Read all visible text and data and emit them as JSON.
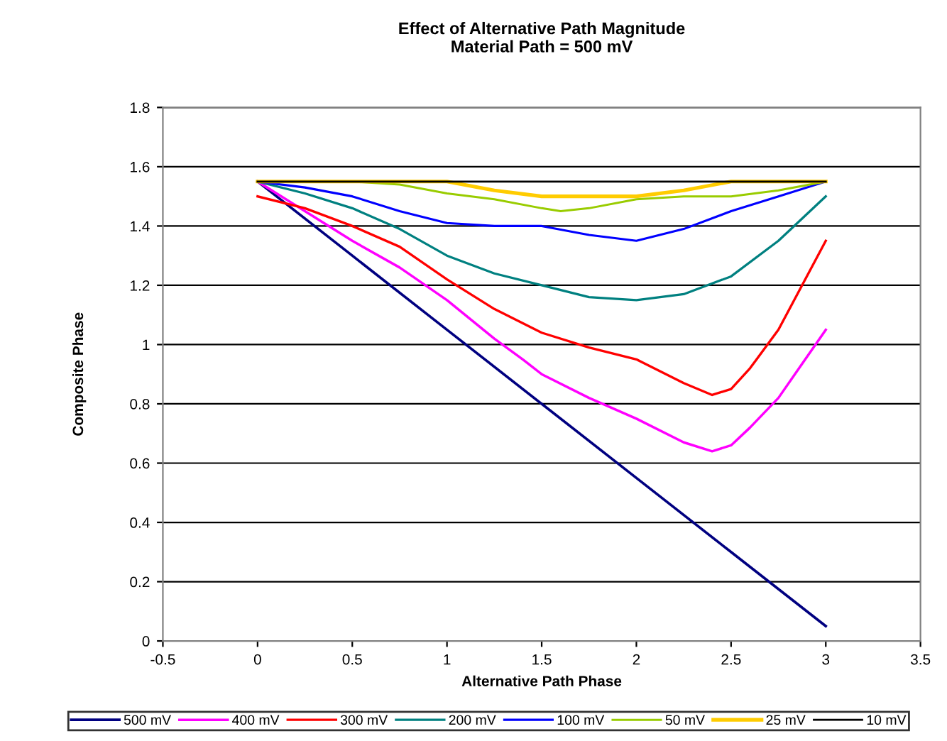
{
  "chart_data": {
    "type": "line",
    "title": "Effect of Alternative Path Magnitude\nMaterial Path = 500 mV",
    "xlabel": "Alternative Path Phase",
    "ylabel": "Composite Phase",
    "xlim": [
      -0.5,
      3.5
    ],
    "xticks": [
      -0.5,
      0,
      0.5,
      1,
      1.5,
      2,
      2.5,
      3,
      3.5
    ],
    "ylim": [
      0,
      1.8
    ],
    "yticks": [
      0,
      0.2,
      0.4,
      0.6,
      0.8,
      1,
      1.2,
      1.4,
      1.6,
      1.8
    ],
    "grid": "y",
    "legend": "bottom",
    "marker": "none",
    "line_style": "solid",
    "series": [
      {
        "name": "500 mV",
        "color": "#000080",
        "x": [
          0,
          0.5,
          1,
          1.5,
          2,
          2.5,
          3
        ],
        "values": [
          1.55,
          1.3,
          1.05,
          0.8,
          0.55,
          0.3,
          0.05
        ]
      },
      {
        "name": "400 mV",
        "color": "#ff00ff",
        "x": [
          0,
          0.25,
          0.5,
          0.75,
          1,
          1.25,
          1.4,
          1.5,
          1.75,
          2,
          2.25,
          2.4,
          2.5,
          2.6,
          2.75,
          3
        ],
        "values": [
          1.55,
          1.45,
          1.35,
          1.26,
          1.15,
          1.02,
          0.95,
          0.9,
          0.82,
          0.75,
          0.67,
          0.64,
          0.66,
          0.72,
          0.82,
          1.05
        ]
      },
      {
        "name": "300 mV",
        "color": "#ff0000",
        "x": [
          0,
          0.25,
          0.5,
          0.75,
          1,
          1.25,
          1.5,
          1.75,
          2,
          2.25,
          2.4,
          2.5,
          2.6,
          2.75,
          3
        ],
        "values": [
          1.5,
          1.46,
          1.4,
          1.33,
          1.22,
          1.12,
          1.04,
          0.99,
          0.95,
          0.87,
          0.83,
          0.85,
          0.92,
          1.05,
          1.35
        ]
      },
      {
        "name": "200 mV",
        "color": "#008080",
        "x": [
          0,
          0.25,
          0.5,
          0.75,
          1,
          1.25,
          1.5,
          1.75,
          2,
          2.25,
          2.5,
          2.75,
          3
        ],
        "values": [
          1.55,
          1.51,
          1.46,
          1.39,
          1.3,
          1.24,
          1.2,
          1.16,
          1.15,
          1.17,
          1.23,
          1.35,
          1.5
        ]
      },
      {
        "name": "100 mV",
        "color": "#0000ff",
        "x": [
          0,
          0.25,
          0.5,
          0.75,
          1,
          1.25,
          1.5,
          1.75,
          2,
          2.25,
          2.5,
          2.75,
          3
        ],
        "values": [
          1.55,
          1.53,
          1.5,
          1.45,
          1.41,
          1.4,
          1.4,
          1.37,
          1.35,
          1.39,
          1.45,
          1.5,
          1.55
        ]
      },
      {
        "name": "50 mV",
        "color": "#99cc00",
        "x": [
          0,
          0.25,
          0.5,
          0.75,
          1,
          1.25,
          1.5,
          1.6,
          1.75,
          2,
          2.25,
          2.5,
          2.75,
          3
        ],
        "values": [
          1.55,
          1.55,
          1.55,
          1.54,
          1.51,
          1.49,
          1.46,
          1.45,
          1.46,
          1.49,
          1.5,
          1.5,
          1.52,
          1.55
        ]
      },
      {
        "name": "25 mV",
        "color": "#ffcc00",
        "x": [
          0,
          0.5,
          1,
          1.25,
          1.5,
          1.75,
          2,
          2.25,
          2.5,
          3
        ],
        "values": [
          1.55,
          1.55,
          1.55,
          1.52,
          1.5,
          1.5,
          1.5,
          1.52,
          1.55,
          1.55
        ]
      },
      {
        "name": "10 mV",
        "color": "#000000",
        "x": [
          0,
          0.5,
          1,
          1.5,
          2,
          2.5,
          3
        ],
        "values": [
          1.55,
          1.55,
          1.55,
          1.55,
          1.55,
          1.55,
          1.55
        ]
      }
    ]
  }
}
